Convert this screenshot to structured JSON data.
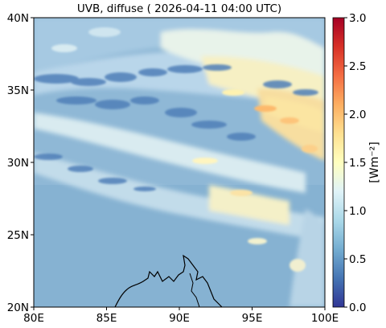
{
  "title": "UVB, diffuse ( 2026-04-11 04:00 UTC)",
  "map": {
    "lon_range": [
      80,
      100
    ],
    "lat_range": [
      20,
      40
    ],
    "x_ticks": [
      {
        "value": 80,
        "label": "80E"
      },
      {
        "value": 85,
        "label": "85E"
      },
      {
        "value": 90,
        "label": "90E"
      },
      {
        "value": 95,
        "label": "95E"
      },
      {
        "value": 100,
        "label": "100E"
      }
    ],
    "y_ticks": [
      {
        "value": 20,
        "label": "20N"
      },
      {
        "value": 25,
        "label": "25N"
      },
      {
        "value": 30,
        "label": "30N"
      },
      {
        "value": 35,
        "label": "35N"
      },
      {
        "value": 40,
        "label": "40N"
      }
    ],
    "coastline_color": "#000000"
  },
  "colorbar": {
    "label": "[Wm⁻²]",
    "range": [
      0.0,
      3.0
    ],
    "ticks": [
      {
        "value": 0.0,
        "label": "0.0"
      },
      {
        "value": 0.5,
        "label": "0.5"
      },
      {
        "value": 1.0,
        "label": "1.0"
      },
      {
        "value": 1.5,
        "label": "1.5"
      },
      {
        "value": 2.0,
        "label": "2.0"
      },
      {
        "value": 2.5,
        "label": "2.5"
      },
      {
        "value": 3.0,
        "label": "3.0"
      }
    ],
    "colormap": [
      "#313695",
      "#4575b4",
      "#74add1",
      "#abd9e9",
      "#e0f3f8",
      "#ffffbf",
      "#fee090",
      "#fdae61",
      "#f46d43",
      "#d73027",
      "#a50026"
    ]
  }
}
